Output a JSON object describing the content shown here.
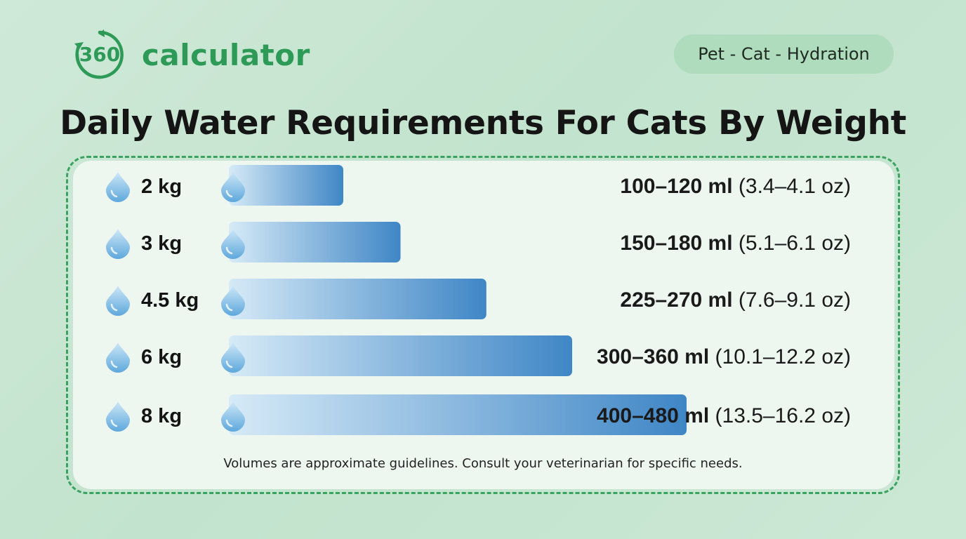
{
  "brand": {
    "logo_numeral": "360",
    "name": "calculator",
    "color": "#2e9a57"
  },
  "category_tag": "Pet - Cat - Hydration",
  "chart_data": {
    "type": "bar",
    "orientation": "horizontal",
    "title": "Daily Water Requirements For Cats By Weight",
    "categories": [
      "2 kg",
      "3 kg",
      "4.5 kg",
      "6 kg",
      "8 kg"
    ],
    "series": [
      {
        "values": [
          120,
          180,
          270,
          360,
          480
        ]
      }
    ],
    "value_labels": [
      {
        "ml": "100–120 ml",
        "oz": "(3.4–4.1 oz)"
      },
      {
        "ml": "150–180 ml",
        "oz": "(5.1–6.1 oz)"
      },
      {
        "ml": "225–270 ml",
        "oz": "(7.6–9.1 oz)"
      },
      {
        "ml": "300–360 ml",
        "oz": "(10.1–12.2 oz)"
      },
      {
        "ml": "400–480 ml",
        "oz": "(13.5–16.2 oz)"
      }
    ],
    "xlim": [
      0,
      480
    ],
    "xlabel": "",
    "ylabel": "",
    "grid": false,
    "legend": "none",
    "colors": {
      "bar_start": "#d6eaf7",
      "bar_end": "#3f86c6",
      "drop_light": "#cde7f7",
      "drop_dark": "#5ea8dc"
    }
  },
  "footnote": "Volumes are approximate guidelines. Consult your veterinarian for specific needs."
}
